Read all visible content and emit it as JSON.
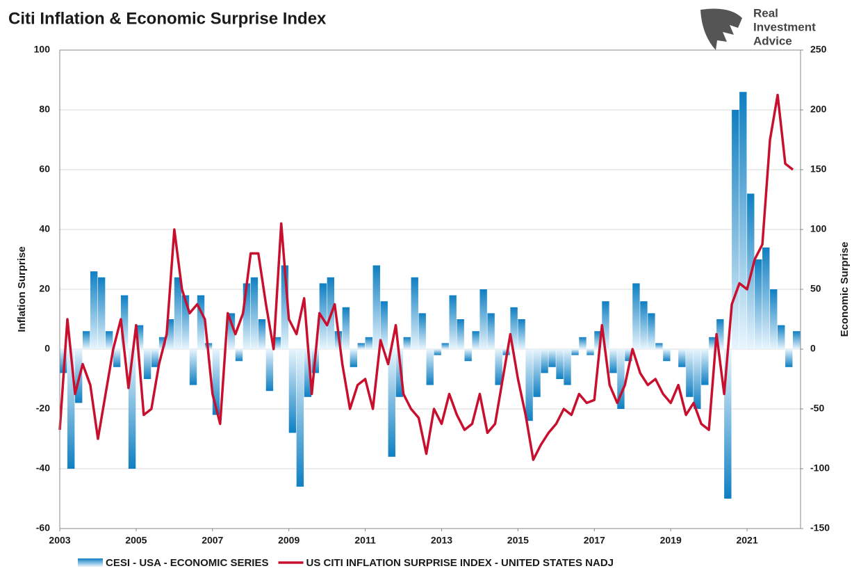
{
  "brand": [
    "Real",
    "Investment",
    "Advice"
  ],
  "chart_data": {
    "type": "bar",
    "title": "Citi Inflation & Economic Surprise Index",
    "y_label": "Inflation Surprise",
    "y2_label": "Economic Surprise",
    "x": [
      2003,
      2003.2,
      2003.4,
      2003.6,
      2003.8,
      2004,
      2004.2,
      2004.4,
      2004.6,
      2004.8,
      2005,
      2005.2,
      2005.4,
      2005.6,
      2005.8,
      2006,
      2006.2,
      2006.4,
      2006.6,
      2006.8,
      2007,
      2007.2,
      2007.4,
      2007.6,
      2007.8,
      2008,
      2008.2,
      2008.4,
      2008.6,
      2008.8,
      2009,
      2009.2,
      2009.4,
      2009.6,
      2009.8,
      2010,
      2010.2,
      2010.4,
      2010.6,
      2010.8,
      2011,
      2011.2,
      2011.4,
      2011.6,
      2011.8,
      2012,
      2012.2,
      2012.4,
      2012.6,
      2012.8,
      2013,
      2013.2,
      2013.4,
      2013.6,
      2013.8,
      2014,
      2014.2,
      2014.4,
      2014.6,
      2014.8,
      2015,
      2015.2,
      2015.4,
      2015.6,
      2015.8,
      2016,
      2016.2,
      2016.4,
      2016.6,
      2016.8,
      2017,
      2017.2,
      2017.4,
      2017.6,
      2017.8,
      2018,
      2018.2,
      2018.4,
      2018.6,
      2018.8,
      2019,
      2019.2,
      2019.4,
      2019.6,
      2019.8,
      2020,
      2020.2,
      2020.4,
      2020.6,
      2020.8,
      2021,
      2021.2,
      2021.4,
      2021.6,
      2021.8,
      2022,
      2022.2
    ],
    "series": [
      {
        "name": "CESI - USA - ECONOMIC SERIES",
        "type": "bar",
        "axis": "y2",
        "color": "#0f7fc2",
        "values": [
          -20,
          -100,
          -45,
          15,
          65,
          60,
          15,
          -15,
          45,
          -100,
          20,
          -25,
          -15,
          10,
          25,
          60,
          45,
          -30,
          45,
          5,
          -55,
          0,
          30,
          -10,
          55,
          60,
          25,
          -35,
          10,
          70,
          -70,
          -115,
          -40,
          -20,
          55,
          60,
          15,
          35,
          -15,
          5,
          10,
          70,
          40,
          -90,
          -40,
          10,
          60,
          30,
          -30,
          -5,
          5,
          45,
          25,
          -10,
          15,
          50,
          30,
          -30,
          -5,
          35,
          25,
          -60,
          -40,
          -20,
          -15,
          -25,
          -30,
          -5,
          10,
          -5,
          15,
          40,
          -20,
          -50,
          -10,
          55,
          40,
          30,
          5,
          -10,
          0,
          -15,
          -40,
          -50,
          -30,
          10,
          25,
          -125,
          200,
          215,
          130,
          75,
          85,
          50,
          20,
          -15,
          15
        ]
      },
      {
        "name": "US CITI INFLATION SURPRISE INDEX - UNITED STATES NADJ",
        "type": "line",
        "axis": "y",
        "color": "#c8102e",
        "values": [
          -27,
          10,
          -15,
          -5,
          -12,
          -30,
          -15,
          0,
          10,
          -13,
          8,
          -22,
          -20,
          -5,
          5,
          40,
          20,
          12,
          15,
          10,
          -15,
          -25,
          12,
          5,
          12,
          32,
          32,
          15,
          0,
          42,
          10,
          5,
          17,
          -15,
          12,
          8,
          15,
          -5,
          -20,
          -12,
          -10,
          -20,
          3,
          -5,
          8,
          -15,
          -20,
          -23,
          -35,
          -20,
          -25,
          -15,
          -22,
          -27,
          -25,
          -15,
          -28,
          -25,
          -10,
          5,
          -10,
          -22,
          -37,
          -32,
          -28,
          -25,
          -20,
          -22,
          -15,
          -18,
          -17,
          8,
          -12,
          -18,
          -12,
          0,
          -8,
          -12,
          -10,
          -15,
          -18,
          -12,
          -22,
          -18,
          -25,
          -27,
          5,
          -15,
          15,
          22,
          20,
          30,
          35,
          70,
          85,
          62,
          60
        ]
      }
    ],
    "xlim": [
      2003,
      2022.4
    ],
    "xticks": [
      2003,
      2005,
      2007,
      2009,
      2011,
      2013,
      2015,
      2017,
      2019,
      2021
    ],
    "ylim": [
      -60,
      100
    ],
    "yticks": [
      -60,
      -40,
      -20,
      0,
      20,
      40,
      60,
      80,
      100
    ],
    "y2lim": [
      -150,
      250
    ],
    "y2ticks": [
      -150,
      -100,
      -50,
      0,
      50,
      100,
      150,
      200,
      250
    ],
    "grid": true
  }
}
